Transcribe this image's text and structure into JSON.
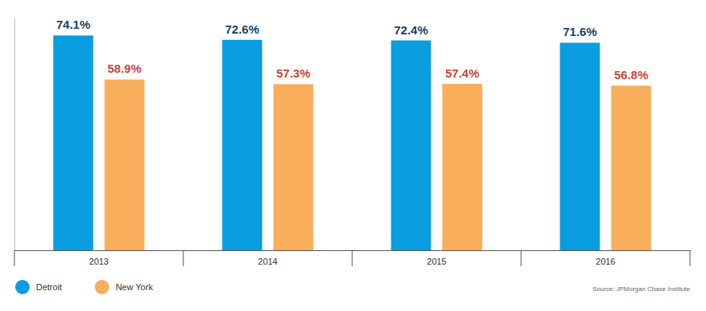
{
  "chart_data": {
    "type": "bar",
    "categories": [
      "2013",
      "2014",
      "2015",
      "2016"
    ],
    "series": [
      {
        "name": "Detroit",
        "color": "#0a9ddf",
        "values": [
          74.1,
          72.6,
          72.4,
          71.6
        ],
        "value_labels": [
          "74.1%",
          "72.6%",
          "72.4%",
          "71.6%"
        ]
      },
      {
        "name": "New York",
        "color": "#f8ae5b",
        "values": [
          58.9,
          57.3,
          57.4,
          56.8
        ],
        "value_labels": [
          "58.9%",
          "57.3%",
          "57.4%",
          "56.8%"
        ]
      }
    ],
    "ylim": [
      0,
      80
    ],
    "yticks": [],
    "data_labels": true,
    "tick_labels": "x",
    "legend": "bottom-left",
    "source": "Source: JPMorgan Chase Institute"
  }
}
